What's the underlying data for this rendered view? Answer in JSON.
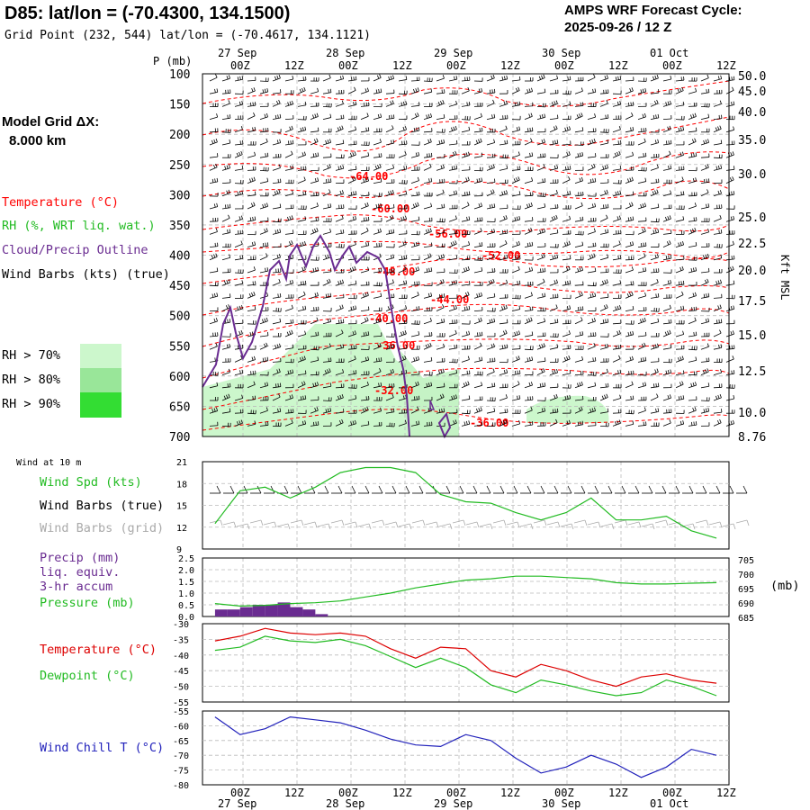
{
  "header": {
    "title": "D85:  lat/lon = (-70.4300, 134.1500)",
    "grid_point": "Grid Point (232, 544) lat/lon = (-70.4617, 134.1121)",
    "cycle_line1": "AMPS WRF Forecast Cycle:",
    "cycle_line2": "2025-09-26 / 12  Z",
    "pressure_unit": "P (mb)",
    "model_grid_label": "Model Grid ΔX:",
    "model_grid_value": "8.000 km"
  },
  "legend": {
    "temperature": "Temperature (°C)",
    "rh": "RH (%, WRT liq. wat.)",
    "cloud": "Cloud/Precip Outline",
    "wind_barbs": "Wind Barbs (kts) (true)",
    "rh70": "RH > 70%",
    "rh80": "RH > 80%",
    "rh90": "RH > 90%",
    "wind10m": "Wind at 10 m",
    "wind_spd": "Wind Spd (kts)",
    "barbs_true": "Wind Barbs (true)",
    "barbs_grid": "Wind Barbs (grid)",
    "precip1": "Precip (mm)",
    "precip2": "liq. equiv.",
    "precip3": "3-hr accum",
    "pressure": "Pressure (mb)",
    "pressure_unit": "(mb)",
    "temp2": "Temperature (°C)",
    "dewpoint": "Dewpoint (°C)",
    "windchill": "Wind Chill T (°C)",
    "kft": "Kft MSL"
  },
  "colors": {
    "temperature": "#ff0000",
    "rh": "#22bb22",
    "cloud": "#6a2c91",
    "windchill": "#2222bb",
    "rh70": "#ccf7cc",
    "rh80": "#99e699",
    "rh90": "#33dd33",
    "grid_barbs": "#aaaaaa"
  },
  "chart_data": [
    {
      "type": "time-height cross-section",
      "x_top_labels": [
        "00Z",
        "12Z",
        "00Z",
        "12Z",
        "00Z",
        "12Z",
        "00Z",
        "12Z",
        "00Z",
        "12Z"
      ],
      "date_labels": [
        "27 Sep",
        "28 Sep",
        "29 Sep",
        "30 Sep",
        "01 Oct"
      ],
      "pressure_levels": [
        100,
        150,
        200,
        250,
        300,
        350,
        400,
        450,
        500,
        550,
        600,
        650,
        700
      ],
      "kft_labels": [
        "50.0",
        "45.0",
        "40.0",
        "35.0",
        "30.0",
        "25.0",
        "22.5",
        "20.0",
        "17.5",
        "15.0",
        "12.5",
        "10.0",
        "8.76"
      ],
      "isotherm_labels": [
        "-64.00",
        "-60.00",
        "-56.00",
        "-52.00",
        "-48.00",
        "-44.00",
        "-40.00",
        "-36.00",
        "-32.00",
        "-36.00"
      ],
      "ylim": [
        100,
        700
      ]
    },
    {
      "type": "line",
      "title": "Wind Spd (kts)",
      "y_ticks": [
        21,
        18,
        15,
        12,
        9
      ],
      "ylim": [
        9,
        21
      ],
      "times_hr": [
        0,
        6,
        12,
        18,
        24,
        30,
        36,
        42,
        48,
        54,
        60,
        66,
        72,
        78,
        84,
        90,
        96,
        102,
        108,
        114,
        120
      ],
      "series": [
        {
          "name": "Wind Spd (kts)",
          "values": [
            12.5,
            17,
            17.5,
            16,
            17.5,
            19.5,
            20.2,
            20.2,
            19.5,
            16.5,
            15.5,
            15.3,
            14,
            13,
            14,
            16,
            13,
            13,
            13.5,
            11.5,
            10.5
          ]
        }
      ]
    },
    {
      "type": "bar+line",
      "precip_ticks": [
        "2.5",
        "2.0",
        "1.5",
        "1.0",
        "0.5",
        "0.0"
      ],
      "pressure_ticks": [
        "705",
        "700",
        "695",
        "690",
        "685"
      ],
      "precip_mm": [
        0.3,
        0.3,
        0.4,
        0.5,
        0.5,
        0.6,
        0.4,
        0.3,
        0.1,
        0,
        0,
        0,
        0,
        0,
        0,
        0,
        0,
        0,
        0,
        0,
        0,
        0,
        0,
        0,
        0,
        0,
        0,
        0,
        0,
        0,
        0,
        0,
        0,
        0,
        0,
        0,
        0,
        0,
        0,
        0,
        0,
        0
      ],
      "pressure_times_hr": [
        0,
        6,
        12,
        18,
        24,
        30,
        36,
        42,
        48,
        54,
        60,
        66,
        72,
        78,
        84,
        90,
        96,
        102,
        108,
        114,
        120
      ],
      "pressure_mb": [
        690,
        689,
        689.3,
        690,
        690.3,
        691,
        692.5,
        694,
        696,
        697.5,
        699,
        699.5,
        700.5,
        700.5,
        700,
        699.5,
        698,
        697.5,
        697.5,
        697.8,
        698
      ],
      "ylim_precip": [
        0,
        2.5
      ],
      "ylim_pressure": [
        685,
        707.5
      ]
    },
    {
      "type": "line",
      "y_ticks": [
        -30,
        -35,
        -40,
        -45,
        -50,
        -55
      ],
      "ylim": [
        -55,
        -30
      ],
      "times_hr": [
        0,
        6,
        12,
        18,
        24,
        30,
        36,
        42,
        48,
        54,
        60,
        66,
        72,
        78,
        84,
        90,
        96,
        102,
        108,
        114,
        120
      ],
      "series": [
        {
          "name": "Temperature (°C)",
          "values": [
            -35.5,
            -34,
            -31.5,
            -33,
            -33.5,
            -33,
            -34,
            -38,
            -41,
            -37.5,
            -38,
            -45,
            -47,
            -43,
            -45,
            -48,
            -50,
            -47,
            -46,
            -48,
            -49
          ]
        },
        {
          "name": "Dewpoint (°C)",
          "values": [
            -38.5,
            -37.5,
            -34,
            -35.5,
            -36,
            -35,
            -37,
            -40.5,
            -44,
            -41,
            -44,
            -49.5,
            -52,
            -48,
            -49.5,
            -51.5,
            -53,
            -52,
            -48,
            -50,
            -53
          ]
        }
      ]
    },
    {
      "type": "line",
      "y_ticks": [
        -55,
        -60,
        -65,
        -70,
        -75,
        -80
      ],
      "ylim": [
        -80,
        -55
      ],
      "times_hr": [
        0,
        6,
        12,
        18,
        24,
        30,
        36,
        42,
        48,
        54,
        60,
        66,
        72,
        78,
        84,
        90,
        96,
        102,
        108,
        114,
        120
      ],
      "series": [
        {
          "name": "Wind Chill T (°C)",
          "values": [
            -57,
            -63,
            -61,
            -57,
            -58,
            -59,
            -61.5,
            -64.5,
            -66.5,
            -67,
            -63,
            -65,
            -71,
            -76,
            -74,
            -70,
            -73,
            -77.5,
            -74,
            -68,
            -70
          ]
        }
      ]
    }
  ]
}
